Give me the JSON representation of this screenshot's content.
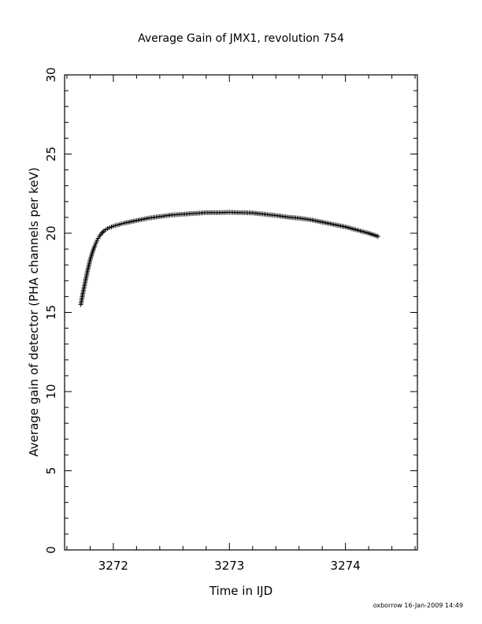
{
  "chart_data": {
    "type": "scatter",
    "title": "Average Gain of JMX1, revolution 754",
    "xlabel": "Time in IJD",
    "ylabel": "Average gain of detector (PHA channels per keV)",
    "xlim": [
      3271.58,
      3274.62
    ],
    "ylim": [
      0,
      30
    ],
    "x_ticks": [
      3272,
      3273,
      3274
    ],
    "x_tick_labels": [
      "3272",
      "3273",
      "3274"
    ],
    "y_ticks": [
      0,
      5,
      10,
      15,
      20,
      25,
      30
    ],
    "y_tick_labels": [
      "0",
      "5",
      "10",
      "15",
      "20",
      "25",
      "30"
    ],
    "x_minor_step": 0.2,
    "y_minor_step": 1,
    "marker": "plus",
    "color": "#000000",
    "grid": false,
    "series": [
      {
        "x": [
          3271.72,
          3271.74,
          3271.76,
          3271.78,
          3271.8,
          3271.82,
          3271.84,
          3271.86,
          3271.88,
          3271.9,
          3271.92,
          3271.95,
          3272.0,
          3272.05,
          3272.1,
          3272.2,
          3272.3,
          3272.4,
          3272.5,
          3272.6,
          3272.7,
          3272.8,
          3272.9,
          3273.0,
          3273.1,
          3273.2,
          3273.3,
          3273.4,
          3273.5,
          3273.6,
          3273.7,
          3273.8,
          3273.9,
          3274.0,
          3274.1,
          3274.2,
          3274.28
        ],
        "y": [
          15.5,
          16.3,
          17.0,
          17.7,
          18.3,
          18.8,
          19.2,
          19.55,
          19.8,
          20.0,
          20.15,
          20.3,
          20.45,
          20.55,
          20.65,
          20.8,
          20.95,
          21.05,
          21.15,
          21.2,
          21.25,
          21.3,
          21.3,
          21.32,
          21.3,
          21.28,
          21.2,
          21.12,
          21.02,
          20.95,
          20.85,
          20.7,
          20.55,
          20.4,
          20.2,
          20.0,
          19.8
        ]
      }
    ]
  },
  "footer": {
    "credit": "oxborrow 16-Jan-2009 14:49"
  }
}
